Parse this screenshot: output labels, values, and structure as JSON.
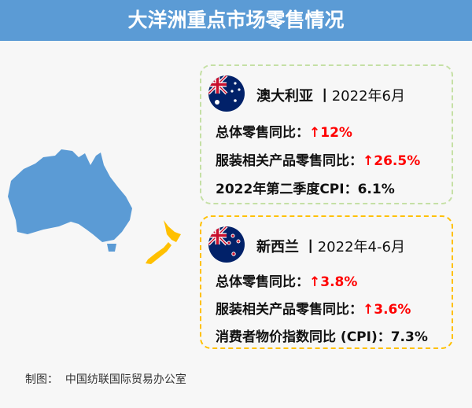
{
  "title": "大洋洲重点市场零售情况",
  "australia": {
    "country": "澳大利亚",
    "sep": "丨",
    "period": "2022年6月",
    "rows": [
      {
        "label": "总体零售同比：",
        "value": "↑12%"
      },
      {
        "label": "服装相关产品零售同比：",
        "value": "↑26.5%"
      },
      {
        "label": "2022年第二季度CPI：",
        "value": "6.1%"
      }
    ],
    "border_color": "#c5e0a5",
    "map_color": "#5b9bd5"
  },
  "new_zealand": {
    "country": "新西兰",
    "sep": "丨",
    "period": "2022年4-6月",
    "rows": [
      {
        "label": "总体零售同比：",
        "value": "↑3.8%"
      },
      {
        "label": "服装相关产品零售同比：",
        "value": "↑3.6%"
      },
      {
        "label": "消费者物价指数同比 (CPI)：",
        "value": "7.3%"
      }
    ],
    "border_color": "#ffc000",
    "map_color": "#ffc000"
  },
  "footer": {
    "label": "制图：",
    "source": "中国纺联国际贸易办公室"
  },
  "colors": {
    "header": "#5b9bd5",
    "highlight": "#ff0000"
  }
}
